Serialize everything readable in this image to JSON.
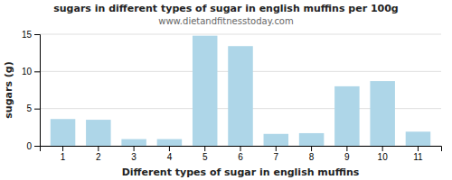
{
  "chart_data": {
    "type": "bar",
    "title": "sugars in different types of sugar in english muffins per 100g",
    "subtitle": "www.dietandfitnesstoday.com",
    "xlabel": "Different types of sugar in english muffins",
    "ylabel": "sugars (g)",
    "categories": [
      "1",
      "2",
      "3",
      "4",
      "5",
      "6",
      "7",
      "8",
      "9",
      "10",
      "11"
    ],
    "values": [
      3.6,
      3.5,
      0.9,
      0.9,
      14.8,
      13.4,
      1.6,
      1.7,
      8.0,
      8.7,
      1.9
    ],
    "color": "#aed6e8",
    "ylim": [
      0,
      15
    ],
    "yticks": [
      0,
      5,
      10,
      15
    ],
    "grid": true
  }
}
